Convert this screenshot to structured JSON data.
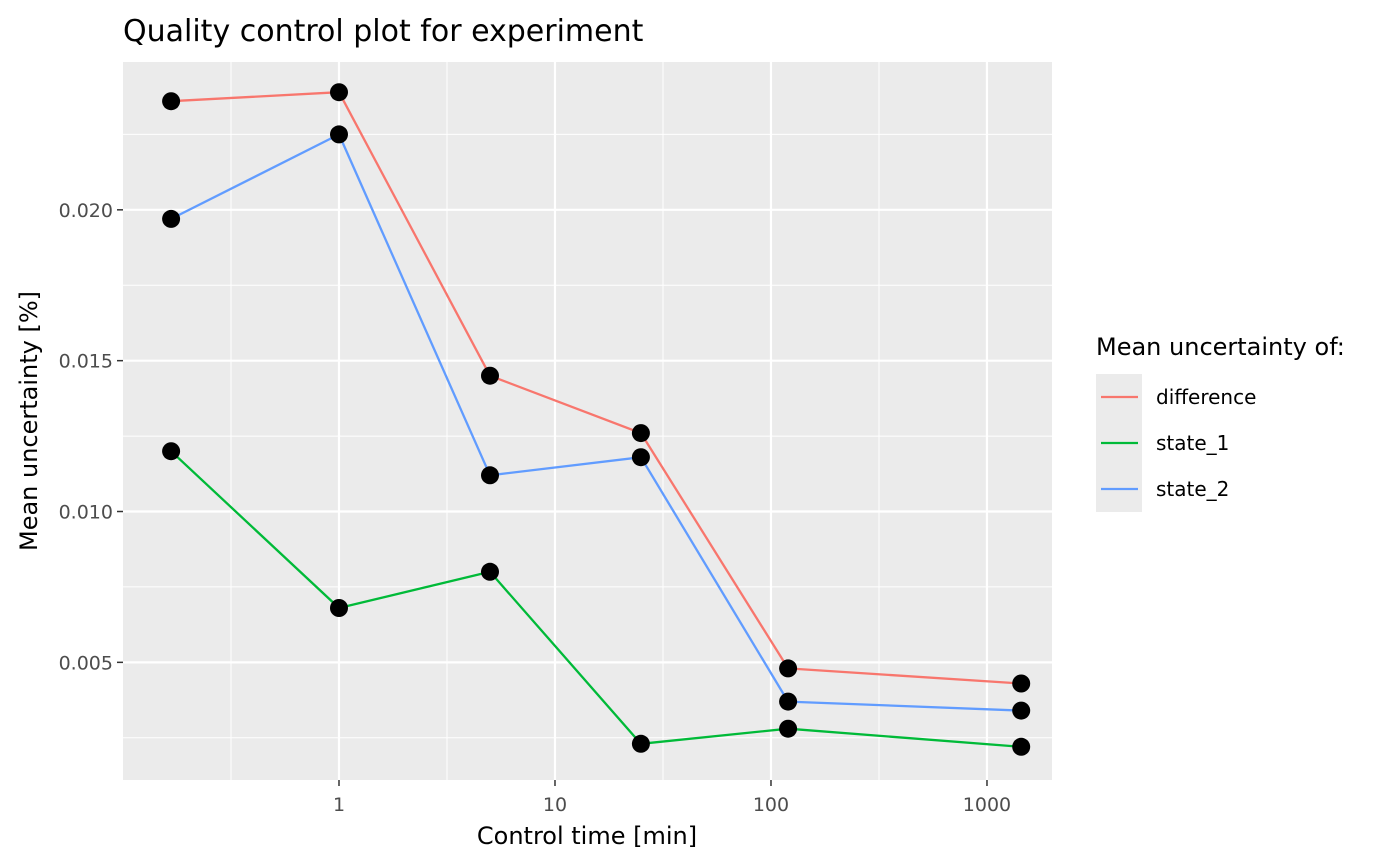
{
  "chart_data": {
    "type": "line",
    "title": "Quality control plot for experiment",
    "xlabel": "Control time [min]",
    "ylabel": "Mean uncertainty [%]",
    "x_scale": "log10",
    "x": [
      0.167,
      1,
      5,
      25,
      120,
      1440
    ],
    "xlim": [
      0.1,
      2000
    ],
    "ylim": [
      0.0011,
      0.0249
    ],
    "x_ticks": [
      1,
      10,
      100,
      1000
    ],
    "x_tick_labels": [
      "1",
      "10",
      "100",
      "1000"
    ],
    "y_ticks": [
      0.005,
      0.01,
      0.015,
      0.02
    ],
    "y_tick_labels": [
      "0.005",
      "0.010",
      "0.015",
      "0.020"
    ],
    "grid": true,
    "legend": {
      "title": "Mean uncertainty of:",
      "position": "right"
    },
    "series": [
      {
        "name": "difference",
        "color": "#F8766D",
        "values": [
          0.0236,
          0.0239,
          0.0145,
          0.0126,
          0.0048,
          0.0043
        ]
      },
      {
        "name": "state_1",
        "color": "#00BA38",
        "values": [
          0.012,
          0.0068,
          0.008,
          0.0023,
          0.0028,
          0.0022
        ]
      },
      {
        "name": "state_2",
        "color": "#619CFF",
        "values": [
          0.0197,
          0.0225,
          0.0112,
          0.0118,
          0.0037,
          0.0034
        ]
      }
    ],
    "point_color": "#000000"
  }
}
